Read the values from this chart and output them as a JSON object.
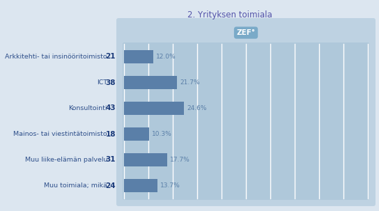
{
  "title": "2. Yrityksen toimiala",
  "categories": [
    "Arkkitehti- tai insinööritoimisto",
    "ICT",
    "Konsultointi",
    "Mainos- tai viestintätoimisto",
    "Muu liike-elämän palvelu",
    "Muu toimiala; mikä"
  ],
  "counts": [
    21,
    38,
    43,
    18,
    31,
    24
  ],
  "percentages": [
    12.0,
    21.7,
    24.6,
    10.3,
    17.7,
    13.7
  ],
  "bar_color": "#5a7fa8",
  "bg_outer": "#dce6f0",
  "bg_inner": "#bed2e2",
  "bg_bars": "#afc8da",
  "grid_color": "#ffffff",
  "label_color": "#2e4f8a",
  "count_color": "#1a3a7a",
  "title_color": "#5555aa",
  "zef_color": "#ffffff",
  "zef_bg": "#7aaac8",
  "n_grid": 10,
  "figsize": [
    5.44,
    3.03
  ],
  "dpi": 100
}
